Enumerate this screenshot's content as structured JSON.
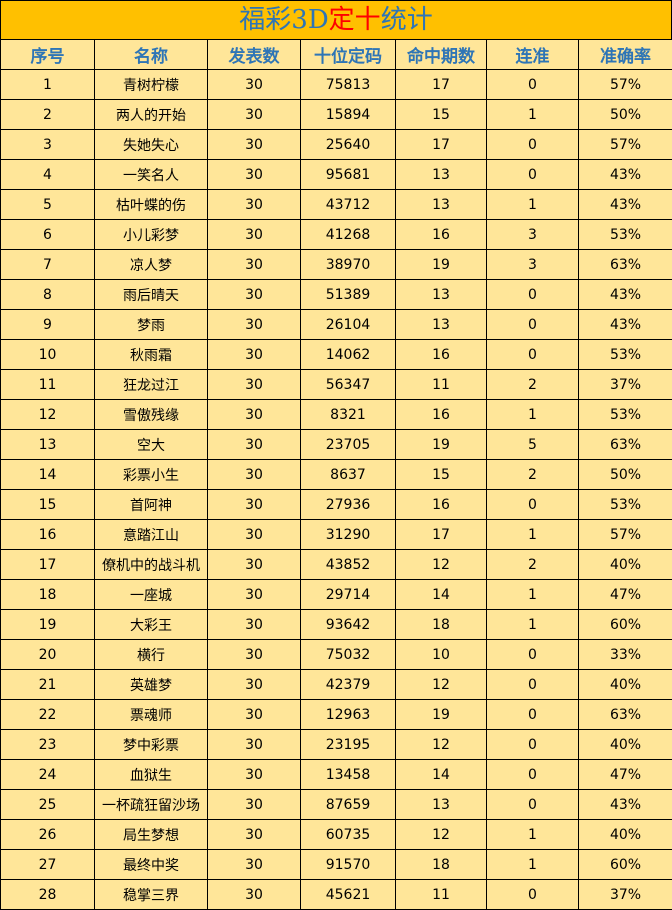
{
  "title": {
    "part1": "福彩3D",
    "part2": "定十",
    "part3": "统计"
  },
  "table": {
    "header": [
      "序号",
      "名称",
      "发表数",
      "十位定码",
      "命中期数",
      "连准",
      "准确率"
    ],
    "rows": [
      [
        "1",
        "青树柠檬",
        "30",
        "75813",
        "17",
        "0",
        "57%"
      ],
      [
        "2",
        "两人的开始",
        "30",
        "15894",
        "15",
        "1",
        "50%"
      ],
      [
        "3",
        "失她失心",
        "30",
        "25640",
        "17",
        "0",
        "57%"
      ],
      [
        "4",
        "一笑名人",
        "30",
        "95681",
        "13",
        "0",
        "43%"
      ],
      [
        "5",
        "枯叶蝶的伤",
        "30",
        "43712",
        "13",
        "1",
        "43%"
      ],
      [
        "6",
        "小儿彩梦",
        "30",
        "41268",
        "16",
        "3",
        "53%"
      ],
      [
        "7",
        "凉人梦",
        "30",
        "38970",
        "19",
        "3",
        "63%"
      ],
      [
        "8",
        "雨后晴天",
        "30",
        "51389",
        "13",
        "0",
        "43%"
      ],
      [
        "9",
        "梦雨",
        "30",
        "26104",
        "13",
        "0",
        "43%"
      ],
      [
        "10",
        "秋雨霜",
        "30",
        "14062",
        "16",
        "0",
        "53%"
      ],
      [
        "11",
        "狂龙过江",
        "30",
        "56347",
        "11",
        "2",
        "37%"
      ],
      [
        "12",
        "雪傲残缘",
        "30",
        "8321",
        "16",
        "1",
        "53%"
      ],
      [
        "13",
        "空大",
        "30",
        "23705",
        "19",
        "5",
        "63%"
      ],
      [
        "14",
        "彩票小生",
        "30",
        "8637",
        "15",
        "2",
        "50%"
      ],
      [
        "15",
        "首阿神",
        "30",
        "27936",
        "16",
        "0",
        "53%"
      ],
      [
        "16",
        "意踏江山",
        "30",
        "31290",
        "17",
        "1",
        "57%"
      ],
      [
        "17",
        "僚机中的战斗机",
        "30",
        "43852",
        "12",
        "2",
        "40%"
      ],
      [
        "18",
        "一座城",
        "30",
        "29714",
        "14",
        "1",
        "47%"
      ],
      [
        "19",
        "大彩王",
        "30",
        "93642",
        "18",
        "1",
        "60%"
      ],
      [
        "20",
        "横行",
        "30",
        "75032",
        "10",
        "0",
        "33%"
      ],
      [
        "21",
        "英雄梦",
        "30",
        "42379",
        "12",
        "0",
        "40%"
      ],
      [
        "22",
        "票魂师",
        "30",
        "12963",
        "19",
        "0",
        "63%"
      ],
      [
        "23",
        "梦中彩票",
        "30",
        "23195",
        "12",
        "0",
        "40%"
      ],
      [
        "24",
        "血狱生",
        "30",
        "13458",
        "14",
        "0",
        "47%"
      ],
      [
        "25",
        "一杯疏狂留沙场",
        "30",
        "87659",
        "13",
        "0",
        "43%"
      ],
      [
        "26",
        "局生梦想",
        "30",
        "60735",
        "12",
        "1",
        "40%"
      ],
      [
        "27",
        "最终中奖",
        "30",
        "91570",
        "18",
        "1",
        "60%"
      ],
      [
        "28",
        "稳掌三界",
        "30",
        "45621",
        "11",
        "0",
        "37%"
      ]
    ]
  }
}
